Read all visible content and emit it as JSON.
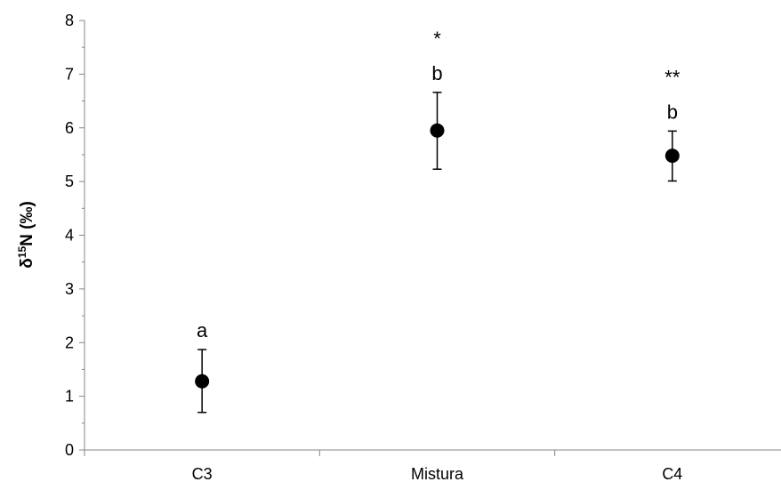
{
  "chart_data": {
    "type": "scatter",
    "title": "",
    "xlabel": "",
    "ylabel": {
      "prefix": "δ",
      "sup": "15",
      "suffix": "N (‰)"
    },
    "ylim": [
      0,
      8
    ],
    "yticks": [
      "0",
      "1",
      "2",
      "3",
      "4",
      "5",
      "6",
      "7",
      "8"
    ],
    "categories": [
      "C3",
      "Mistura",
      "C4"
    ],
    "values": [
      1.28,
      5.95,
      5.48
    ],
    "error_low": [
      0.7,
      5.23,
      5.01
    ],
    "error_high": [
      1.87,
      6.66,
      5.94
    ],
    "annotations": [
      {
        "category": "C3",
        "lines": [
          "a"
        ]
      },
      {
        "category": "Mistura",
        "lines": [
          "*",
          "b"
        ]
      },
      {
        "category": "C4",
        "lines": [
          "**",
          "b"
        ]
      }
    ],
    "grid": false,
    "legend": "none"
  }
}
